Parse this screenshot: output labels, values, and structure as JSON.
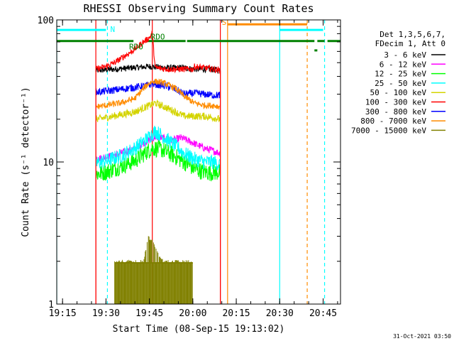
{
  "chart_data": {
    "type": "line",
    "title": "RHESSI Observing Summary Count Rates",
    "xlabel": "Start Time (08-Sep-15 19:13:02)",
    "ylabel": "Count Rate (s⁻¹ detector⁻¹)",
    "x_unit": "minutes after 19:13:02 UT",
    "yscale": "log",
    "xlim": [
      0,
      98
    ],
    "ylim": [
      1,
      100
    ],
    "x_ticks": [
      {
        "value": 2,
        "label": "19:15"
      },
      {
        "value": 17,
        "label": "19:30"
      },
      {
        "value": 32,
        "label": "19:45"
      },
      {
        "value": 47,
        "label": "20:00"
      },
      {
        "value": 62,
        "label": "20:15"
      },
      {
        "value": 77,
        "label": "20:30"
      },
      {
        "value": 92,
        "label": "20:45"
      }
    ],
    "y_ticks": [
      {
        "value": 1,
        "label": "1"
      },
      {
        "value": 10,
        "label": "10"
      },
      {
        "value": 100,
        "label": "100"
      }
    ],
    "legend": {
      "position": "right",
      "header": [
        "Det 1,3,5,6,7,",
        "FDecim 1, Att 0"
      ],
      "entries": [
        {
          "label": "3 - 6 keV",
          "color": "#000000"
        },
        {
          "label": "6 - 12 keV",
          "color": "#ff00ff"
        },
        {
          "label": "12 - 25 keV",
          "color": "#00ff00"
        },
        {
          "label": "25 - 50 keV",
          "color": "#00ffff"
        },
        {
          "label": "50 - 100 keV",
          "color": "#d4d400"
        },
        {
          "label": "100 - 300 keV",
          "color": "#ff0000"
        },
        {
          "label": "300 - 800 keV",
          "color": "#0000ff"
        },
        {
          "label": "800 - 7000 keV",
          "color": "#ff8c00"
        },
        {
          "label": "7000 - 15000 keV",
          "color": "#808000"
        }
      ]
    },
    "series": [
      {
        "name": "3 - 6 keV",
        "color": "#000000",
        "x": [
          13.5,
          20,
          26,
          32,
          38,
          44,
          47.5,
          53,
          56.5
        ],
        "y": [
          44,
          45,
          46,
          47,
          46,
          46,
          45,
          45,
          44
        ]
      },
      {
        "name": "6 - 12 keV",
        "color": "#ff00ff",
        "x": [
          13.5,
          17,
          22,
          27,
          31,
          34,
          36,
          40,
          43,
          47.5,
          51,
          54,
          56.5
        ],
        "y": [
          10.5,
          10.8,
          11.5,
          12.5,
          14,
          15,
          14.8,
          14.2,
          14.8,
          13.5,
          12.5,
          12,
          11.5
        ]
      },
      {
        "name": "12 - 25 keV",
        "color": "#00ff00",
        "x": [
          13.5,
          17,
          22,
          27,
          31,
          33,
          36,
          40,
          44,
          47.5,
          50,
          53,
          56.5
        ],
        "y": [
          8.2,
          8.5,
          9.3,
          10.2,
          11.8,
          12.5,
          12.3,
          11.2,
          10,
          9,
          8.6,
          8.4,
          8.5
        ]
      },
      {
        "name": "25 - 50 keV",
        "color": "#00ffff",
        "x": [
          13.5,
          17,
          22,
          27,
          31,
          34,
          37,
          41,
          44,
          47.5,
          51,
          54,
          56.5
        ],
        "y": [
          9.8,
          10.2,
          11,
          12.5,
          14.5,
          16.5,
          15,
          13,
          11.5,
          10.5,
          10,
          10,
          9.6
        ]
      },
      {
        "name": "50 - 100 keV",
        "color": "#d4d400",
        "x": [
          13.5,
          17,
          22,
          27,
          31,
          34,
          37,
          41,
          44,
          47.5,
          51,
          54,
          56.5
        ],
        "y": [
          20,
          20.5,
          21.5,
          22.5,
          24.5,
          26,
          24.5,
          22.5,
          21,
          21,
          21,
          20.5,
          20
        ]
      },
      {
        "name": "100 - 300 keV",
        "color": "#ff0000",
        "x": [
          13.5,
          17,
          20,
          23,
          26,
          28,
          30,
          32,
          33,
          34,
          38,
          42,
          47,
          47.6,
          51,
          54,
          56.5
        ],
        "y": [
          45,
          47,
          50,
          55,
          60,
          65,
          70,
          75,
          80,
          46,
          45,
          45,
          45,
          47,
          46,
          45,
          44
        ]
      },
      {
        "name": "300 - 800 keV",
        "color": "#0000ff",
        "x": [
          13.5,
          17,
          22,
          27,
          31,
          33,
          37,
          41,
          44,
          47.5,
          51,
          54,
          56.5
        ],
        "y": [
          31,
          31.5,
          32.5,
          33.5,
          34.5,
          35.5,
          34.5,
          32.5,
          30,
          30.5,
          30,
          29.5,
          29.5
        ]
      },
      {
        "name": "800 - 7000 keV",
        "color": "#ff8c00",
        "x": [
          13.5,
          17,
          22,
          27,
          30,
          32,
          33.5,
          37,
          41,
          44,
          47.5,
          51,
          54,
          56.5
        ],
        "y": [
          24.5,
          25,
          26,
          28,
          33,
          36,
          37,
          36,
          33,
          29,
          26,
          25,
          25,
          24.5
        ]
      },
      {
        "name": "7000 - 15000 keV",
        "color": "#808000",
        "x": [
          20,
          22,
          24,
          26,
          28,
          30,
          31.5,
          33,
          35,
          37,
          39,
          41,
          43,
          45,
          47
        ],
        "y": [
          1.95,
          1.95,
          1.95,
          1.95,
          1.95,
          1.95,
          2.9,
          2.7,
          2.2,
          1.95,
          1.95,
          1.95,
          1.95,
          1.95,
          1.95
        ]
      }
    ],
    "annotations": [
      {
        "label": "N",
        "color": "#00ffff"
      },
      {
        "label": "S",
        "color": "#ff8c00"
      },
      {
        "label": "RDO",
        "color": "#008000"
      },
      {
        "label": "RDO",
        "color": "#008000"
      }
    ],
    "status_bars": [
      {
        "name": "N",
        "color": "#00ffff",
        "y": 85,
        "segments": [
          [
            0,
            17
          ],
          [
            77,
            92
          ]
        ]
      },
      {
        "name": "S",
        "color": "#ff8c00",
        "y": 93,
        "segments": [
          [
            59,
            86.5
          ]
        ]
      },
      {
        "name": "RDO",
        "color": "#008000",
        "y": 71,
        "segments": [
          [
            0,
            26.5
          ],
          [
            31,
            44.5
          ],
          [
            45,
            89
          ],
          [
            90,
            92.5
          ],
          [
            93.5,
            98
          ]
        ]
      },
      {
        "name": "RDO2",
        "color": "#008000",
        "y": 61,
        "segments": [
          [
            89,
            90
          ]
        ]
      }
    ],
    "vertical_markers": [
      {
        "x": 0,
        "color": "#00ffff",
        "style": "solid"
      },
      {
        "x": 13.5,
        "color": "#ff0000",
        "style": "solid"
      },
      {
        "x": 17.5,
        "color": "#00ffff",
        "style": "dashed"
      },
      {
        "x": 33,
        "color": "#ff0000",
        "style": "solid"
      },
      {
        "x": 56.5,
        "color": "#ff0000",
        "style": "solid"
      },
      {
        "x": 59,
        "color": "#ff8c00",
        "style": "solid"
      },
      {
        "x": 77,
        "color": "#00ffff",
        "style": "solid"
      },
      {
        "x": 86.5,
        "color": "#ff8c00",
        "style": "dashed"
      },
      {
        "x": 92.5,
        "color": "#00ffff",
        "style": "dashed"
      }
    ]
  },
  "footer": {
    "timestamp": "31-Oct-2021 03:50"
  }
}
